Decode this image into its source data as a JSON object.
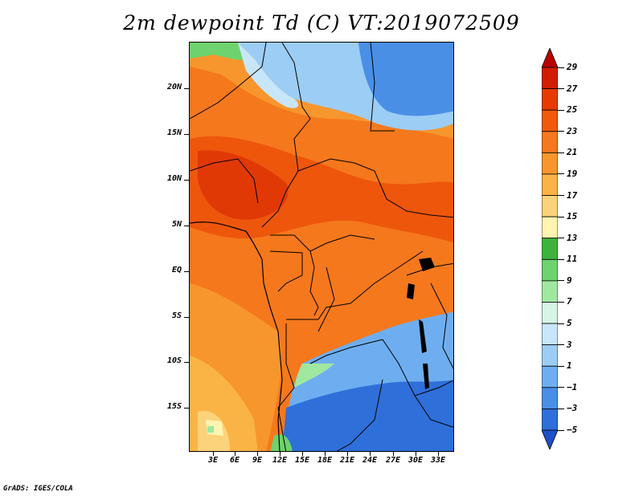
{
  "title": "2m dewpoint Td (C) VT:2019072509",
  "footer": "GrADS: IGES/COLA",
  "map": {
    "lat_labels": [
      "20N",
      "15N",
      "10N",
      "5N",
      "EQ",
      "5S",
      "10S",
      "15S"
    ],
    "lon_labels": [
      "3E",
      "6E",
      "9E",
      "12E",
      "15E",
      "18E",
      "21E",
      "24E",
      "27E",
      "30E",
      "33E"
    ]
  },
  "colorbar": {
    "labels": [
      "29",
      "27",
      "25",
      "23",
      "21",
      "19",
      "17",
      "15",
      "13",
      "11",
      "9",
      "7",
      "5",
      "3",
      "1",
      "−1",
      "−3",
      "−5"
    ],
    "colors": [
      "#b80000",
      "#d21c00",
      "#e83a00",
      "#f05a0a",
      "#f5781c",
      "#f7962c",
      "#fab446",
      "#fcd27a",
      "#fff4b0",
      "#3cb43c",
      "#6ed26e",
      "#a0e8a0",
      "#d6f5e6",
      "#c8e6fa",
      "#9ccdf5",
      "#6eaef0",
      "#4a8fe6",
      "#2f6fda",
      "#1e50c8"
    ]
  }
}
